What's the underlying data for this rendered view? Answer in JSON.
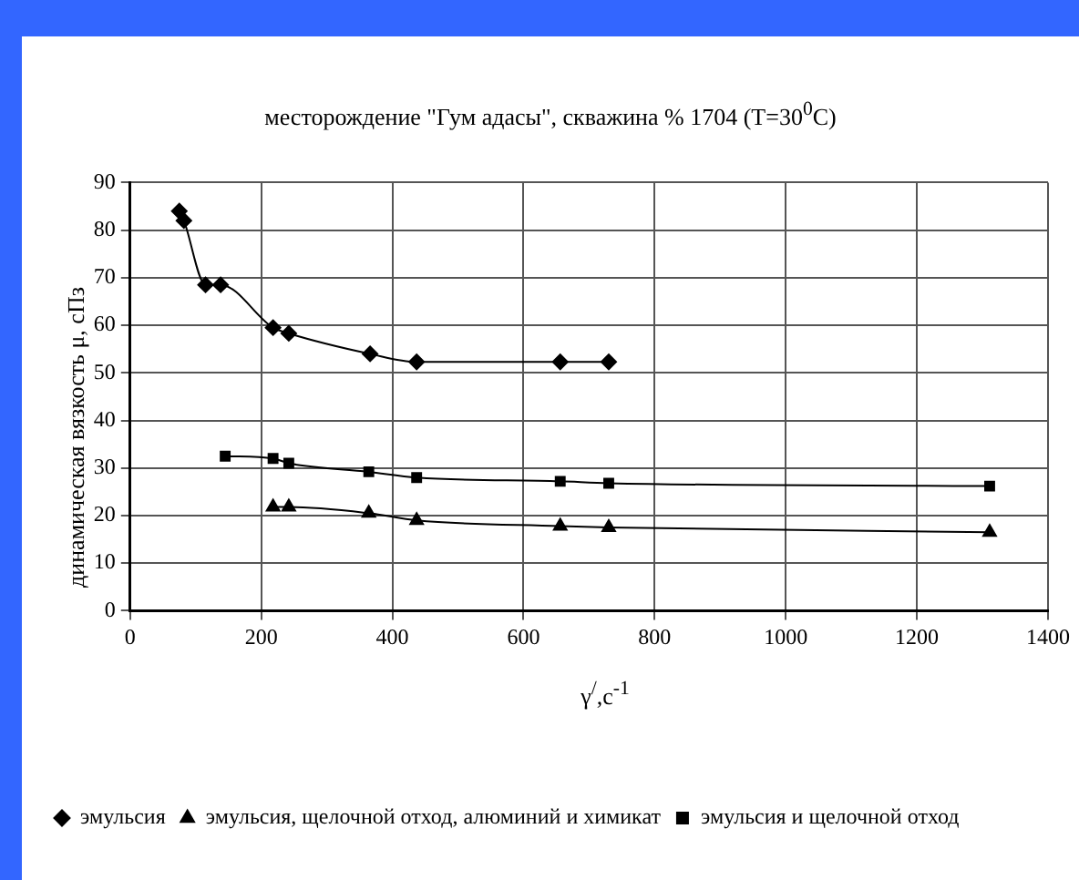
{
  "chart_data": {
    "type": "line",
    "title": "месторождение \"Гум адасы\", скважина % 1704 (T=30$^{0}$C)",
    "xlabel": "γ$^{/}$,с$^{-1}$",
    "ylabel": "динамическая вязкость  μ, сПз",
    "series": [
      {
        "name": "эмульсия",
        "color": "#000000",
        "marker": "diamond",
        "x": [
          75,
          82,
          115,
          138,
          218,
          242,
          366,
          437,
          656,
          730
        ],
        "values": [
          84,
          82,
          68.5,
          68.5,
          59.5,
          58.3,
          54,
          52.3,
          52.3,
          52.3
        ]
      },
      {
        "name": "эмульсия, щелочной отход, алюминий и химикат",
        "color": "#000000",
        "marker": "triangle",
        "x": [
          218,
          242,
          364,
          437,
          656,
          730,
          1311
        ],
        "values": [
          21.8,
          21.8,
          20.5,
          19,
          17.8,
          17.5,
          16.5
        ]
      },
      {
        "name": "эмульсия и щелочной отход",
        "color": "#000000",
        "marker": "square",
        "x": [
          145,
          218,
          242,
          364,
          437,
          656,
          730,
          1311
        ],
        "values": [
          32.5,
          32,
          31,
          29.2,
          28,
          27.2,
          26.8,
          26.2
        ]
      }
    ],
    "xlim": [
      0,
      1400
    ],
    "xticks": [
      0,
      200,
      400,
      600,
      800,
      1000,
      1200,
      1400
    ],
    "ylim": [
      0,
      90
    ],
    "yticks": [
      0,
      10,
      20,
      30,
      40,
      50,
      60,
      70,
      80,
      90
    ],
    "grid": true,
    "legend": "bottom",
    "line_style": "solid"
  }
}
